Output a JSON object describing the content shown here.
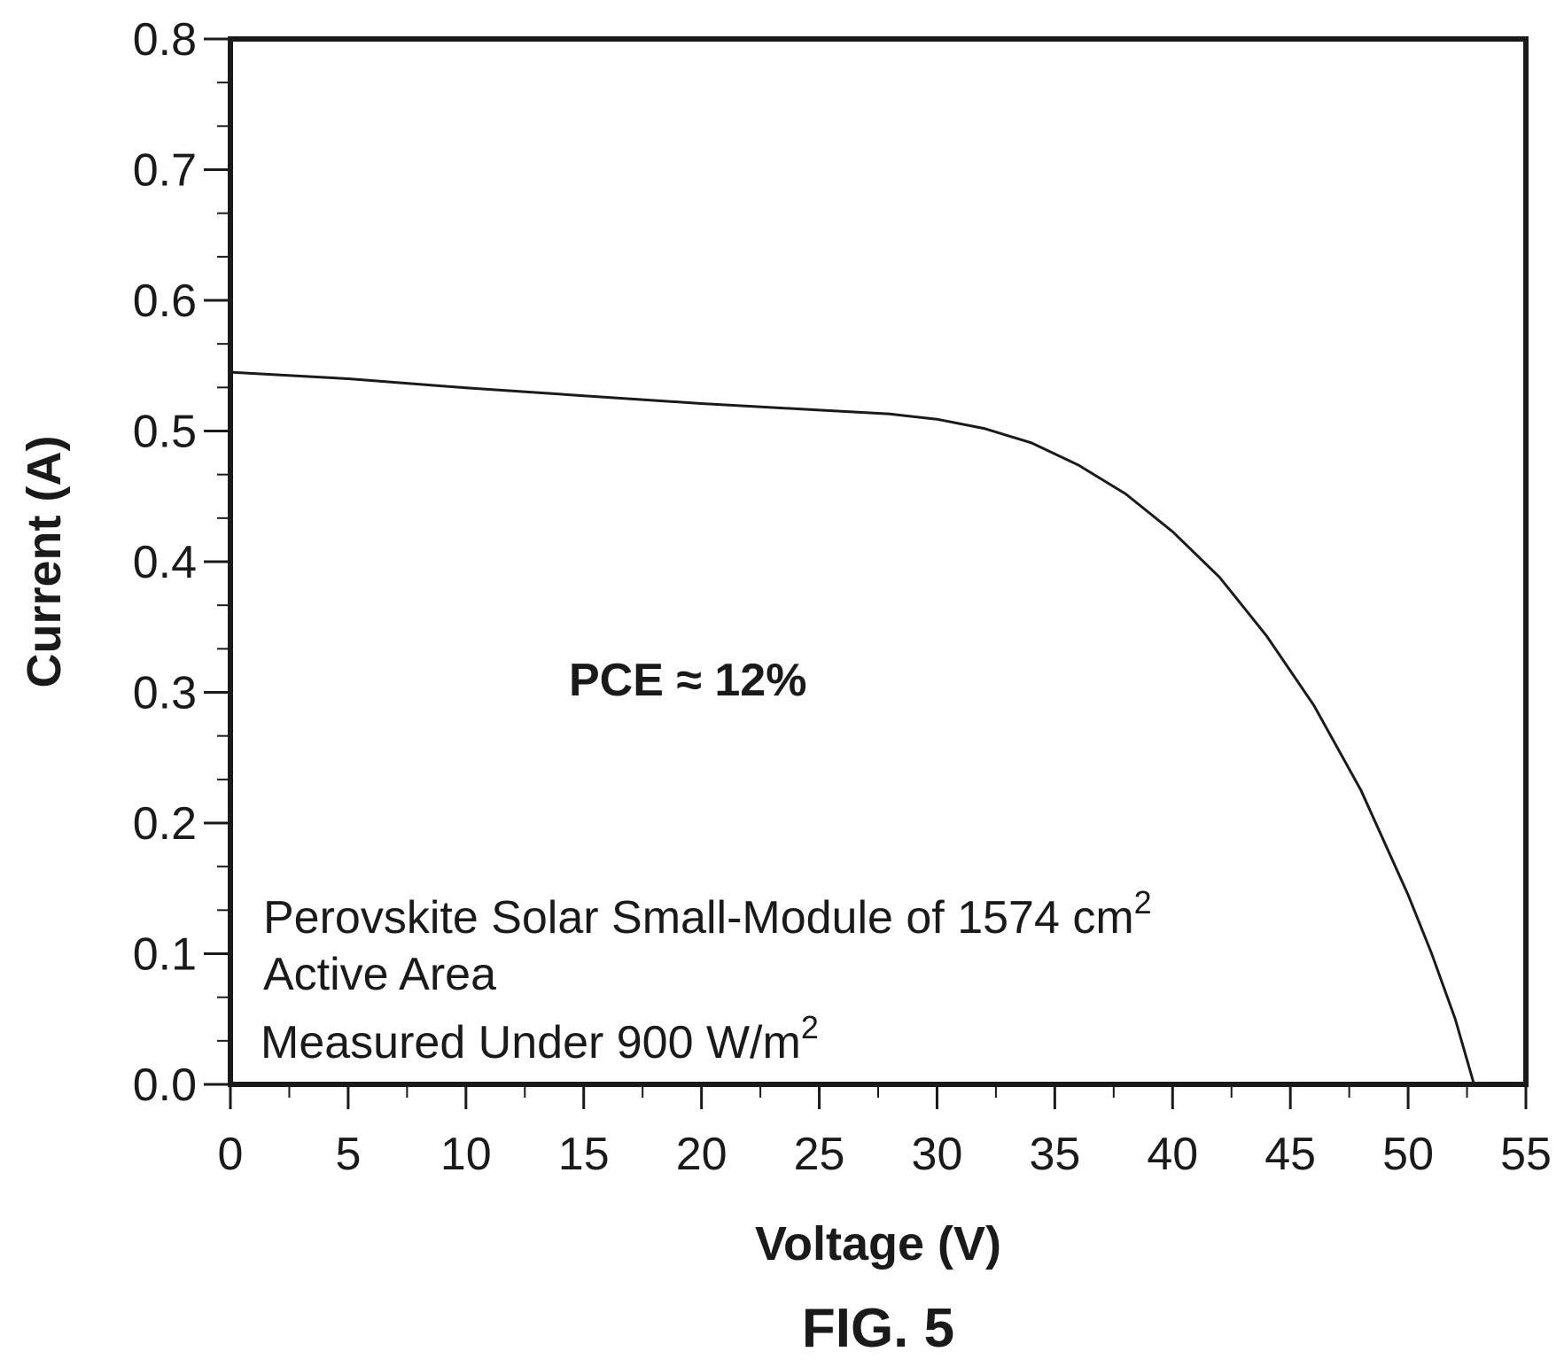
{
  "chart_data": {
    "type": "line",
    "title": "",
    "xlabel": "Voltage (V)",
    "ylabel": "Current (A)",
    "xlim": [
      0,
      55
    ],
    "ylim": [
      0,
      0.8
    ],
    "x_ticks": [
      "0",
      "5",
      "10",
      "15",
      "20",
      "25",
      "30",
      "35",
      "40",
      "45",
      "50",
      "55"
    ],
    "y_ticks": [
      "0.0",
      "0.1",
      "0.2",
      "0.3",
      "0.4",
      "0.5",
      "0.6",
      "0.7",
      "0.8"
    ],
    "grid": false,
    "legend": "none",
    "series": [
      {
        "x": [
          0,
          5,
          10,
          15,
          20,
          25,
          28,
          30,
          32,
          34,
          36,
          38,
          40,
          42,
          44,
          46,
          48,
          50,
          51,
          52,
          52.8
        ],
        "y": [
          0.545,
          0.54,
          0.533,
          0.527,
          0.521,
          0.516,
          0.513,
          0.509,
          0.502,
          0.491,
          0.474,
          0.452,
          0.423,
          0.388,
          0.343,
          0.29,
          0.225,
          0.145,
          0.1,
          0.05,
          0.0
        ]
      }
    ],
    "annotations": {
      "pce": "PCE ≈ 12%",
      "line1_text": "Perovskite Solar Small-Module of 1574 cm",
      "line1_sup": "2",
      "line2_text": "Active Area",
      "line3_text": "Measured Under 900 W/m",
      "line3_sup": "2"
    }
  },
  "figure_label": "FIG. 5",
  "colors": {
    "ink": "#1a1a1a",
    "background": "#ffffff"
  }
}
